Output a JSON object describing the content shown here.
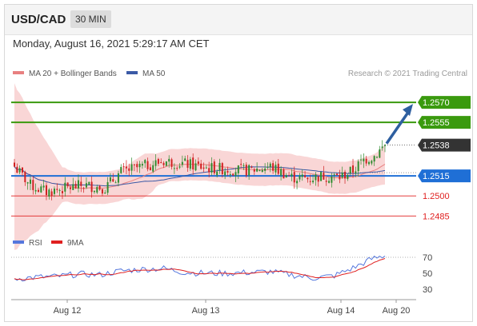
{
  "header": {
    "pair": "USD/CAD",
    "timeframe": "30 MIN"
  },
  "datetime": "Monday, August 16, 2021 5:29:17 AM CET",
  "legend": {
    "ma20_bb": "MA 20 + Bollinger Bands",
    "ma50": "MA 50",
    "credit": "Research © 2021 Trading Central"
  },
  "rsi_legend": {
    "rsi": "RSI",
    "ma9": "9MA"
  },
  "colors": {
    "green": "#3a9a0e",
    "blue": "#1f6fd6",
    "red": "#e02020",
    "candle_up": "#2e8b2e",
    "candle_down": "#d02020",
    "band": "#f7c8c8",
    "ma20": "#e88080",
    "ma50": "#3b5aa6",
    "arrow": "#2e5fa0",
    "rsi_line": "#5577dd",
    "rsi_ma": "#e02020"
  },
  "chart_data": [
    {
      "type": "candlestick",
      "ylim": [
        1.2478,
        1.2585
      ],
      "x_ticks": [
        "Aug 12",
        "Aug 13",
        "Aug 14",
        "Aug 20"
      ],
      "levels": [
        {
          "value": 1.257,
          "label": "1.2570",
          "role": "resistance"
        },
        {
          "value": 1.2555,
          "label": "1.2555",
          "role": "resistance"
        },
        {
          "value": 1.2538,
          "label": "1.2538",
          "role": "last"
        },
        {
          "value": 1.2515,
          "label": "1.2515",
          "role": "pivot"
        },
        {
          "value": 1.25,
          "label": "1.2500",
          "role": "support"
        },
        {
          "value": 1.2485,
          "label": "1.2485",
          "role": "support"
        }
      ],
      "arrow": {
        "from": 1.2538,
        "to": 1.257
      },
      "n_candles": 140,
      "anchor_closes": [
        [
          0,
          1.2522
        ],
        [
          6,
          1.2508
        ],
        [
          12,
          1.2503
        ],
        [
          20,
          1.2506
        ],
        [
          26,
          1.2508
        ],
        [
          34,
          1.2506
        ],
        [
          40,
          1.2518
        ],
        [
          48,
          1.2522
        ],
        [
          56,
          1.2526
        ],
        [
          64,
          1.2524
        ],
        [
          72,
          1.2521
        ],
        [
          80,
          1.252
        ],
        [
          88,
          1.2519
        ],
        [
          96,
          1.2522
        ],
        [
          104,
          1.2514
        ],
        [
          110,
          1.2513
        ],
        [
          116,
          1.2515
        ],
        [
          122,
          1.2514
        ],
        [
          127,
          1.2519
        ],
        [
          131,
          1.2527
        ],
        [
          135,
          1.253
        ],
        [
          139,
          1.2538
        ]
      ]
    },
    {
      "type": "line",
      "title": "RSI",
      "yticks": [
        70,
        50,
        30
      ],
      "ylim": [
        20,
        80
      ],
      "overbought": 70,
      "anchor_rsi": [
        [
          0,
          43
        ],
        [
          8,
          45
        ],
        [
          16,
          46
        ],
        [
          24,
          49
        ],
        [
          32,
          48
        ],
        [
          40,
          53
        ],
        [
          48,
          55
        ],
        [
          56,
          56
        ],
        [
          64,
          51
        ],
        [
          72,
          50
        ],
        [
          80,
          50
        ],
        [
          88,
          51
        ],
        [
          96,
          52
        ],
        [
          104,
          48
        ],
        [
          112,
          44
        ],
        [
          120,
          47
        ],
        [
          128,
          58
        ],
        [
          134,
          68
        ],
        [
          139,
          72
        ]
      ]
    }
  ]
}
